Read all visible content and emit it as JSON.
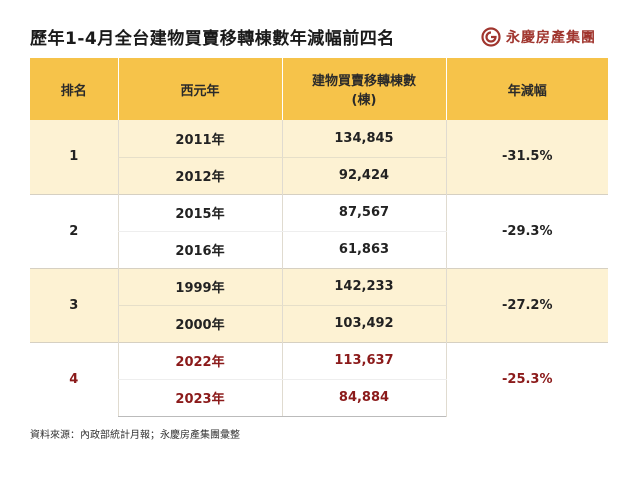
{
  "title": "歷年1-4月全台建物買賣移轉棟數年減幅前四名",
  "brand": {
    "name": "永慶房產集團",
    "logo_icon": "yungching-logo-icon",
    "color": "#a0352e"
  },
  "table": {
    "headers": {
      "rank": "排名",
      "year": "西元年",
      "count_line1": "建物買賣移轉棟數",
      "count_line2": "(棟)",
      "change": "年減幅"
    },
    "groups": [
      {
        "rank": "1",
        "change": "-31.5%",
        "style": "shaded",
        "rows": [
          {
            "year": "2011年",
            "count": "134,845"
          },
          {
            "year": "2012年",
            "count": "92,424"
          }
        ]
      },
      {
        "rank": "2",
        "change": "-29.3%",
        "style": "plain",
        "rows": [
          {
            "year": "2015年",
            "count": "87,567"
          },
          {
            "year": "2016年",
            "count": "61,863"
          }
        ]
      },
      {
        "rank": "3",
        "change": "-27.2%",
        "style": "shaded",
        "rows": [
          {
            "year": "1999年",
            "count": "142,233"
          },
          {
            "year": "2000年",
            "count": "103,492"
          }
        ]
      },
      {
        "rank": "4",
        "change": "-25.3%",
        "style": "highlight-red",
        "rows": [
          {
            "year": "2022年",
            "count": "113,637"
          },
          {
            "year": "2023年",
            "count": "84,884"
          }
        ]
      }
    ]
  },
  "colors": {
    "header_bg": "#f6c34a",
    "shaded_row_bg": "#fdf2d3",
    "highlight_text": "#8b1a1a"
  },
  "footer": "資料來源：內政部統計月報；永慶房產集團彙整"
}
